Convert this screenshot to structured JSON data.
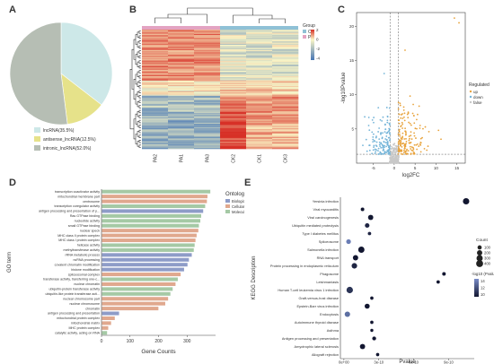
{
  "panel_labels": {
    "a": "A",
    "b": "B",
    "c": "C",
    "d": "D",
    "e": "E"
  },
  "colors": {
    "pie_lncrna": "#cde8e8",
    "pie_antisense": "#e6e28a",
    "pie_intronic": "#b6beb4",
    "up": "#e8a33c",
    "down": "#74b4d8",
    "false": "#c8c8c8",
    "bp": "#8e9cc8",
    "cc": "#e0a88e",
    "mf": "#a5c9a5",
    "heat_high": "#d73027",
    "heat_mid": "#fbf7c7",
    "heat_low": "#4575b4",
    "grp_ck": "#8fc1d6",
    "grp_pa": "#e3a3c2"
  },
  "chart_data": [
    {
      "type": "pie",
      "labels": [
        "lncRNA(35.5%)",
        "antisense_lncRNA(12.5%)",
        "intronic_lncRNA(52.0%)"
      ],
      "values": [
        35.5,
        12.5,
        52.0
      ]
    },
    {
      "type": "heatmap",
      "columns": [
        "PA2",
        "PA1",
        "PA3",
        "CK2",
        "CK1",
        "CK3"
      ],
      "legend_title": "Group",
      "groups": [
        "CK",
        "PA"
      ],
      "scale_ticks": [
        "2",
        "0",
        "-2",
        "-4"
      ],
      "scale_range": [
        -4,
        2
      ],
      "group_legend_title": "Group"
    },
    {
      "type": "scatter",
      "xlabel": "log2FC",
      "ylabel": "-log10Pvalue",
      "x_ticks": [
        "-5",
        "0",
        "5",
        "10",
        "15"
      ],
      "y_ticks": [
        "5",
        "10",
        "15",
        "20"
      ],
      "xlim": [
        -9,
        17
      ],
      "ylim": [
        0,
        22
      ],
      "legend_title": "Regulated",
      "legend": [
        "up",
        "down",
        "false"
      ],
      "threshold_x": [
        -1,
        1
      ],
      "threshold_y": 1.3
    },
    {
      "type": "bar",
      "xlabel": "Gene Counts",
      "ylabel": "GO term",
      "x_ticks": [
        "0",
        "100",
        "200",
        "300"
      ],
      "xlim": [
        0,
        400
      ],
      "legend_title": "Ontology",
      "legend": [
        "Biological process",
        "Cellular component",
        "Molecular function"
      ],
      "categories": [
        "transcription coactivator activity",
        "mitochondrial membrane part",
        "centrosome",
        "transcription coregulator activity",
        "antigen processing and presentation of p...",
        "Ras GTPase binding",
        "nucleotide activity",
        "small GTPase binding",
        "nuclear speck",
        "MHC class II protein complex",
        "MHC class I protein complex",
        "helicase activity",
        "methyltransferase activity",
        "rRNA metabolic process",
        "ncRNA processing",
        "covalent chromatin modification",
        "histone modification",
        "spliceosomal complex",
        "transferase activity, transferring one-c...",
        "nuclear chromatin",
        "ubiquitin-protein transferase activity",
        "ubiquitin-like protein transferase acti...",
        "nuclear chromosome part",
        "nuclear chromosome",
        "chromatin",
        "antigen processing and presentation",
        "mitochondrial protein complex",
        "mitochondrial matrix",
        "MHC protein complex",
        "catalytic activity, acting on RNA"
      ],
      "values": [
        380,
        370,
        368,
        362,
        355,
        348,
        345,
        340,
        338,
        332,
        328,
        325,
        322,
        315,
        305,
        300,
        288,
        276,
        266,
        258,
        248,
        240,
        232,
        222,
        198,
        60,
        45,
        32,
        22,
        18
      ],
      "ontology": [
        "mf",
        "cc",
        "cc",
        "mf",
        "bp",
        "mf",
        "mf",
        "mf",
        "cc",
        "cc",
        "cc",
        "mf",
        "mf",
        "bp",
        "bp",
        "bp",
        "bp",
        "cc",
        "mf",
        "cc",
        "mf",
        "mf",
        "cc",
        "cc",
        "cc",
        "bp",
        "cc",
        "cc",
        "cc",
        "mf"
      ]
    },
    {
      "type": "scatter",
      "xlabel": "Pvalue",
      "ylabel": "KEGG Description",
      "x_ticks": [
        "0e+00",
        "3e-10",
        "6e-10",
        "9e-10"
      ],
      "xlim": [
        -0.3,
        11.2
      ],
      "x_unit_note": "x values in units of 1e-10",
      "size_legend_title": "Count",
      "size_legend": [
        "100",
        "200",
        "300",
        "400"
      ],
      "color_legend_title": "-log10 (Pvalue)",
      "color_legend": [
        "14",
        "12",
        "10"
      ],
      "categories": [
        "Yersinia infection",
        "Viral myocarditis",
        "Viral carcinogenesis",
        "Ubiquitin mediated proteolysis",
        "Type I diabetes mellitus",
        "Spliceosome",
        "Salmonella infection",
        "RNA transport",
        "Protein processing in endoplasmic reticulum",
        "Phagosome",
        "Leishmaniasis",
        "Human T-cell leukemia virus 1 infection",
        "Graft-versus-host disease",
        "Epstein-Barr virus infection",
        "Endocytosis",
        "Autoimmune thyroid disease",
        "Asthma",
        "Antigen processing and presentation",
        "Amyotrophic lateral sclerosis",
        "Allograft rejection"
      ],
      "x": [
        10.5,
        1.6,
        2.3,
        2.0,
        2.2,
        0.4,
        1.5,
        1.0,
        0.9,
        8.6,
        8.1,
        0.5,
        2.4,
        2.0,
        0.3,
        2.4,
        2.4,
        2.6,
        1.6,
        2.9
      ],
      "count": [
        320,
        60,
        190,
        130,
        50,
        140,
        300,
        200,
        220,
        60,
        50,
        330,
        45,
        170,
        210,
        45,
        35,
        80,
        190,
        45
      ],
      "neglog10p": [
        10,
        10,
        10,
        10.5,
        10.5,
        13.5,
        10,
        10,
        10.5,
        10,
        10,
        11,
        10,
        10,
        13,
        10,
        10,
        10,
        10,
        10
      ]
    }
  ]
}
